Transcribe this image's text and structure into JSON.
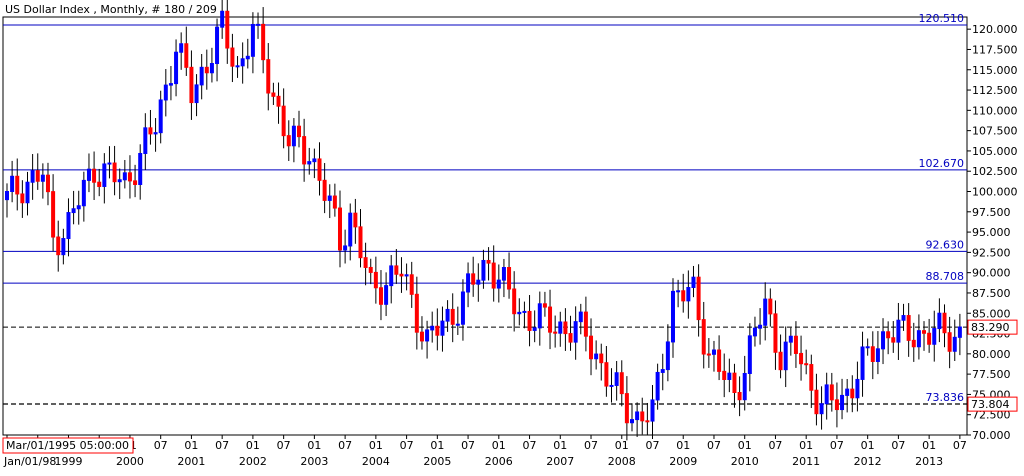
{
  "header": {
    "title": "US Dollar Index , Monthly, # 180 / 209"
  },
  "chart_data": {
    "type": "candlestick",
    "title": "US Dollar Index , Monthly, # 180 / 209",
    "instrument": "US Dollar Index",
    "period": "Monthly",
    "ylim": [
      70,
      121.5
    ],
    "yticks": [
      "70.000",
      "72.500",
      "75.000",
      "77.500",
      "80.000",
      "82.500",
      "85.000",
      "87.500",
      "90.000",
      "92.500",
      "95.000",
      "97.500",
      "100.000",
      "102.500",
      "105.000",
      "107.500",
      "110.000",
      "112.500",
      "115.000",
      "117.500",
      "120.000"
    ],
    "grid": false,
    "colors": {
      "up": "#0000ff",
      "down": "#ff0000",
      "level_line": "#0000c0",
      "dashed_line": "#000000",
      "axis": "#000000",
      "current_box": "#ff0000"
    },
    "x_month_labels": [
      "01",
      "07"
    ],
    "x_year_labels": [
      "1999",
      "2000",
      "2001",
      "2002",
      "2003",
      "2004",
      "2005",
      "2006",
      "2007",
      "2008",
      "2009",
      "2010",
      "2011",
      "2012",
      "2013"
    ],
    "x_start_label": "Jan/01/98",
    "cursor_time_label": "Mar/01/1995 05:00:00",
    "levels": [
      {
        "value": 120.51,
        "label": "120.510",
        "style": "solid"
      },
      {
        "value": 102.67,
        "label": "102.670",
        "style": "solid"
      },
      {
        "value": 92.63,
        "label": "92.630",
        "style": "solid"
      },
      {
        "value": 88.708,
        "label": "88.708",
        "style": "solid"
      },
      {
        "value": 83.29,
        "label": "83.290",
        "style": "dashed",
        "boxed": true
      },
      {
        "value": 73.836,
        "label": "73.836",
        "style": "dashed",
        "inline": true
      },
      {
        "value": 73.804,
        "label": "73.804",
        "style": "dashed",
        "boxed": true
      }
    ],
    "close_anchors": [
      [
        "1998-01",
        99.0
      ],
      [
        "1998-04",
        101.0
      ],
      [
        "1998-08",
        102.0
      ],
      [
        "1998-10",
        94.0
      ],
      [
        "1999-01",
        96.0
      ],
      [
        "1999-06",
        103.0
      ],
      [
        "1999-12",
        101.0
      ],
      [
        "2000-06",
        108.0
      ],
      [
        "2000-10",
        118.0
      ],
      [
        "2001-01",
        112.0
      ],
      [
        "2001-07",
        120.0
      ],
      [
        "2001-10",
        115.0
      ],
      [
        "2002-01",
        120.0
      ],
      [
        "2002-05",
        112.0
      ],
      [
        "2002-08",
        106.0
      ],
      [
        "2002-12",
        105.0
      ],
      [
        "2003-04",
        98.0
      ],
      [
        "2003-06",
        94.0
      ],
      [
        "2003-08",
        97.0
      ],
      [
        "2003-12",
        88.0
      ],
      [
        "2004-03",
        89.0
      ],
      [
        "2004-06",
        90.0
      ],
      [
        "2004-11",
        81.5
      ],
      [
        "2005-04",
        85.0
      ],
      [
        "2005-11",
        91.5
      ],
      [
        "2006-05",
        85.0
      ],
      [
        "2006-12",
        83.5
      ],
      [
        "2007-06",
        82.5
      ],
      [
        "2007-11",
        76.0
      ],
      [
        "2008-04",
        72.0
      ],
      [
        "2008-07",
        72.5
      ],
      [
        "2008-11",
        87.0
      ],
      [
        "2009-03",
        87.5
      ],
      [
        "2009-06",
        80.0
      ],
      [
        "2009-11",
        75.0
      ],
      [
        "2010-05",
        86.0
      ],
      [
        "2010-08",
        80.0
      ],
      [
        "2010-11",
        80.5
      ],
      [
        "2011-04",
        73.5
      ],
      [
        "2011-08",
        74.5
      ],
      [
        "2012-01",
        79.5
      ],
      [
        "2012-05",
        83.0
      ],
      [
        "2012-07",
        82.5
      ]
    ],
    "note": "candles are drawn from the close anchors; intermediate monthly values are interpolated from the chart"
  }
}
